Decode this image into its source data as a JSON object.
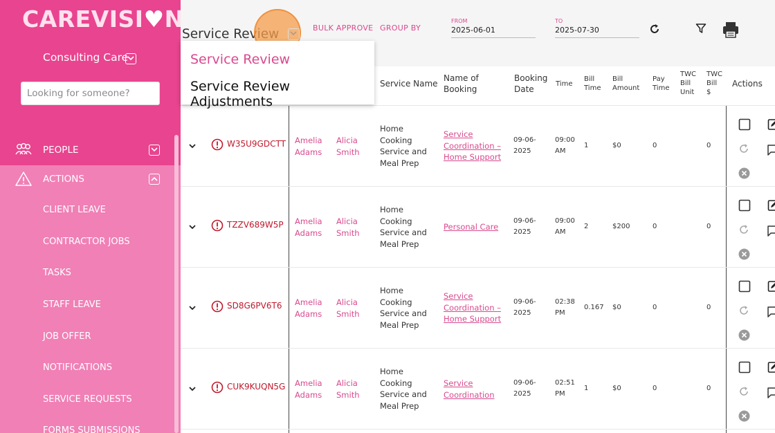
{
  "sidebar": {
    "logo": {
      "pre": "CAREVISI",
      "heart": "♥",
      "post": "N"
    },
    "org": "Consulting Care",
    "search_placeholder": "Looking for someone?",
    "people": {
      "label": "PEOPLE",
      "icon": "people-icon"
    },
    "actions": {
      "label": "ACTIONS",
      "icon": "warning-icon"
    },
    "items": [
      "CLIENT LEAVE",
      "CONTRACTOR JOBS",
      "TASKS",
      "STAFF LEAVE",
      "JOB OFFER",
      "NOTIFICATIONS",
      "SERVICE REQUESTS",
      "FORMS SUBMISSIONS"
    ]
  },
  "header": {
    "view_title": "Service Review",
    "bulk_approve": "BULK APPROVE",
    "group_by": "GROUP BY",
    "from_label": "FROM",
    "from_value": "2025-06-01",
    "to_label": "TO",
    "to_value": "2025-07-30"
  },
  "dropdown": {
    "options": [
      "Service Review",
      "Service Review Adjustments"
    ],
    "selected": "Service Review"
  },
  "table": {
    "headers": {
      "service_name": "Service Name",
      "name_of_booking": [
        "Name of",
        "Booking"
      ],
      "booking_date": [
        "Booking",
        "Date"
      ],
      "time": "Time",
      "bill_time": [
        "Bill",
        "Time"
      ],
      "bill_amount": [
        "Bill",
        "Amount"
      ],
      "pay_time": [
        "Pay",
        "Time"
      ],
      "twc_bill_unit": [
        "TWC",
        "Bill",
        "Unit"
      ],
      "twc_bill_dollar": [
        "TWC",
        "Bill",
        "$"
      ],
      "actions": "Actions"
    },
    "rows": [
      {
        "id": "W35U9GDCTT",
        "client": [
          "Amelia",
          "Adams"
        ],
        "staff": [
          "Alicia",
          "Smith"
        ],
        "service": [
          "Home",
          "Cooking",
          "Service and",
          "Meal Prep"
        ],
        "booking": [
          "Service",
          "Coordination –",
          "Home Support"
        ],
        "date": [
          "09-06-",
          "2025"
        ],
        "time": [
          "09:00",
          "AM"
        ],
        "bill_time": "1",
        "bill_amount": "$0",
        "pay_time": "0",
        "twc_bill": "0"
      },
      {
        "id": "TZZV689W5P",
        "client": [
          "Amelia",
          "Adams"
        ],
        "staff": [
          "Alicia",
          "Smith"
        ],
        "service": [
          "Home",
          "Cooking",
          "Service and",
          "Meal Prep"
        ],
        "booking": [
          "Personal Care"
        ],
        "date": [
          "09-06-",
          "2025"
        ],
        "time": [
          "09:00",
          "AM"
        ],
        "bill_time": "2",
        "bill_amount": "$200",
        "pay_time": "0",
        "twc_bill": "0"
      },
      {
        "id": "SD8G6PV6T6",
        "client": [
          "Amelia",
          "Adams"
        ],
        "staff": [
          "Alicia",
          "Smith"
        ],
        "service": [
          "Home",
          "Cooking",
          "Service and",
          "Meal Prep"
        ],
        "booking": [
          "Service",
          "Coordination –",
          "Home Support"
        ],
        "date": [
          "09-06-",
          "2025"
        ],
        "time": [
          "02:38",
          "PM"
        ],
        "bill_time": "0.167",
        "bill_amount": "$0",
        "pay_time": "0",
        "twc_bill": "0"
      },
      {
        "id": "CUK9KUQN5G",
        "client": [
          "Amelia",
          "Adams"
        ],
        "staff": [
          "Alicia",
          "Smith"
        ],
        "service": [
          "Home",
          "Cooking",
          "Service and",
          "Meal Prep"
        ],
        "booking": [
          "Service",
          "Coordination"
        ],
        "date": [
          "09-06-",
          "2025"
        ],
        "time": [
          "02:51",
          "PM"
        ],
        "bill_time": "1",
        "bill_amount": "$0",
        "pay_time": "0",
        "twc_bill": "0"
      }
    ]
  },
  "icons": {
    "refresh": "refresh-icon",
    "filter": "filter-icon",
    "print": "print-icon",
    "expand": "chevron-down-icon",
    "alert": "alert-circle-icon",
    "checkbox": "checkbox-icon",
    "edit": "edit-icon",
    "rerun": "rerun-icon",
    "comment": "comment-icon",
    "delete": "close-circle-icon"
  },
  "colors": {
    "brand": "#e9448f",
    "sidebar_light": "#f080b6",
    "link": "#d9498e",
    "alert": "#c0182b",
    "focus": "#f49d4b"
  }
}
